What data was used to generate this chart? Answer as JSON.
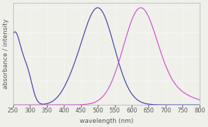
{
  "title": "",
  "xlabel": "wavelength (nm)",
  "ylabel": "absorbance / intensity",
  "xlim": [
    250,
    800
  ],
  "ylim": [
    0,
    1.05
  ],
  "x_ticks": [
    250,
    300,
    350,
    400,
    450,
    500,
    550,
    600,
    650,
    700,
    750,
    800
  ],
  "background_color": "#f0f0eb",
  "grid_color": "#ffffff",
  "excitation_color": "#4444aa",
  "emission_color": "#cc55cc",
  "label_fontsize": 6.5,
  "tick_fontsize": 6,
  "linewidth": 0.9
}
